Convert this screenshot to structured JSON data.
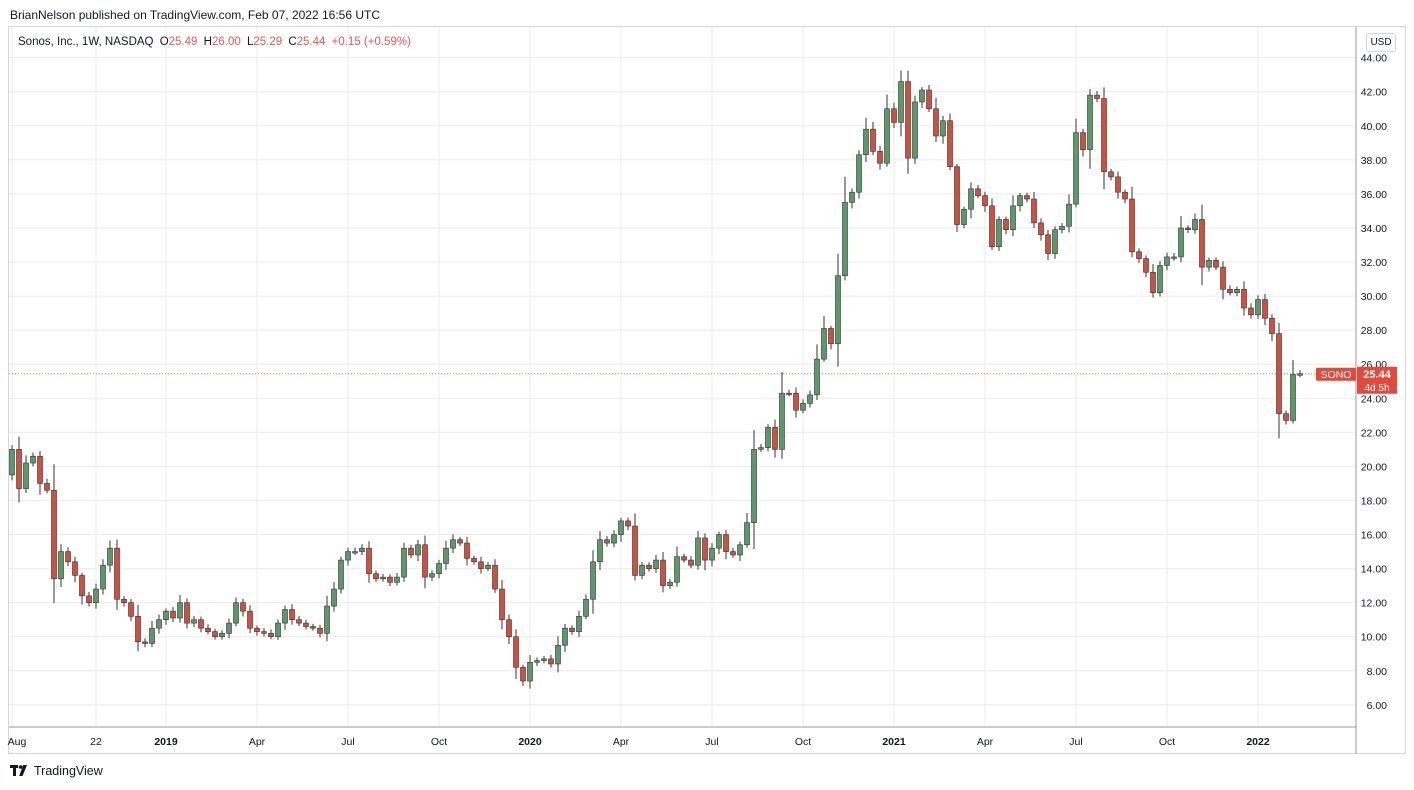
{
  "header": {
    "publisher": "BrianNelson published on TradingView.com, Feb 07, 2022 16:56 UTC"
  },
  "legend": {
    "symbol": "Sonos, Inc., 1W, NASDAQ",
    "o_label": "O",
    "o_value": "25.49",
    "h_label": "H",
    "h_value": "26.00",
    "l_label": "L",
    "l_value": "25.29",
    "c_label": "C",
    "c_value": "25.44",
    "change": "+0.15 (+0.59%)"
  },
  "currency_button": "USD",
  "price_tag": {
    "ticker": "SONO",
    "price": "25.44",
    "countdown": "4d 5h"
  },
  "footer": {
    "brand": "TradingView"
  },
  "colors": {
    "up": "#5b9a68",
    "down": "#d14f3c",
    "grid": "#ebebeb",
    "price_line": "#e0785f"
  },
  "chart_data": {
    "type": "candlestick",
    "interval": "1W",
    "ylim": [
      4.7,
      45.8
    ],
    "y_ticks": [
      6,
      8,
      10,
      12,
      14,
      16,
      18,
      20,
      22,
      24,
      26,
      28,
      30,
      32,
      34,
      36,
      38,
      40,
      42,
      44
    ],
    "x_ticks": [
      {
        "label": "Aug",
        "index": 0,
        "bold": false
      },
      {
        "label": "22",
        "index": 12,
        "bold": false
      },
      {
        "label": "2019",
        "index": 22,
        "bold": true
      },
      {
        "label": "Apr",
        "index": 35,
        "bold": false
      },
      {
        "label": "Jul",
        "index": 48,
        "bold": false
      },
      {
        "label": "Oct",
        "index": 61,
        "bold": false
      },
      {
        "label": "2020",
        "index": 74,
        "bold": true
      },
      {
        "label": "Apr",
        "index": 87,
        "bold": false
      },
      {
        "label": "Jul",
        "index": 100,
        "bold": false
      },
      {
        "label": "Oct",
        "index": 113,
        "bold": false
      },
      {
        "label": "2021",
        "index": 126,
        "bold": true
      },
      {
        "label": "Apr",
        "index": 139,
        "bold": false
      },
      {
        "label": "Jul",
        "index": 152,
        "bold": false
      },
      {
        "label": "Oct",
        "index": 165,
        "bold": false
      },
      {
        "label": "2022",
        "index": 178,
        "bold": true
      }
    ],
    "last_close": 25.44,
    "closes": [
      21.0,
      18.7,
      20.2,
      20.6,
      19.0,
      18.6,
      13.4,
      15.0,
      14.4,
      13.6,
      12.4,
      12.0,
      12.8,
      14.2,
      15.2,
      12.2,
      12.0,
      11.2,
      9.7,
      9.6,
      10.5,
      11.0,
      11.5,
      11.1,
      12.0,
      10.8,
      11.0,
      10.5,
      10.3,
      10.0,
      10.2,
      10.8,
      12.0,
      11.5,
      10.5,
      10.3,
      10.2,
      10.0,
      10.8,
      11.6,
      11.0,
      10.8,
      10.6,
      10.5,
      10.2,
      11.8,
      12.8,
      14.5,
      15.0,
      15.0,
      15.2,
      13.7,
      13.4,
      13.5,
      13.2,
      13.5,
      15.2,
      14.8,
      15.4,
      13.5,
      13.7,
      14.3,
      15.2,
      15.7,
      15.5,
      14.6,
      14.4,
      14.0,
      14.2,
      12.8,
      11.0,
      10.0,
      8.2,
      7.4,
      8.5,
      8.6,
      8.7,
      8.4,
      9.5,
      10.5,
      10.3,
      11.2,
      12.2,
      14.4,
      15.7,
      15.5,
      16.0,
      16.8,
      16.5,
      13.6,
      14.2,
      14.0,
      14.5,
      13.0,
      13.2,
      14.7,
      14.5,
      14.2,
      15.8,
      14.5,
      15.2,
      16.0,
      15.0,
      14.8,
      15.4,
      16.7,
      21.0,
      21.1,
      22.3,
      21.0,
      24.3,
      24.3,
      23.3,
      23.7,
      24.2,
      26.3,
      28.1,
      27.2,
      31.2,
      35.5,
      36.1,
      38.3,
      39.8,
      38.5,
      37.8,
      41.0,
      40.2,
      42.6,
      38.1,
      41.4,
      42.1,
      41.0,
      39.4,
      40.3,
      37.6,
      34.2,
      35.1,
      36.3,
      35.9,
      35.3,
      32.9,
      34.5,
      33.9,
      35.3,
      35.9,
      35.7,
      34.3,
      33.6,
      32.5,
      33.9,
      34.1,
      35.4,
      39.6,
      38.6,
      41.8,
      41.6,
      37.3,
      37.0,
      36.1,
      35.7,
      32.6,
      32.2,
      31.4,
      30.2,
      31.8,
      32.3,
      32.3,
      34.0,
      33.9,
      34.5,
      31.7,
      32.1,
      31.7,
      30.4,
      30.2,
      30.4,
      29.3,
      28.9,
      29.8,
      28.7,
      27.8,
      23.1,
      22.7,
      25.4,
      25.44
    ]
  }
}
